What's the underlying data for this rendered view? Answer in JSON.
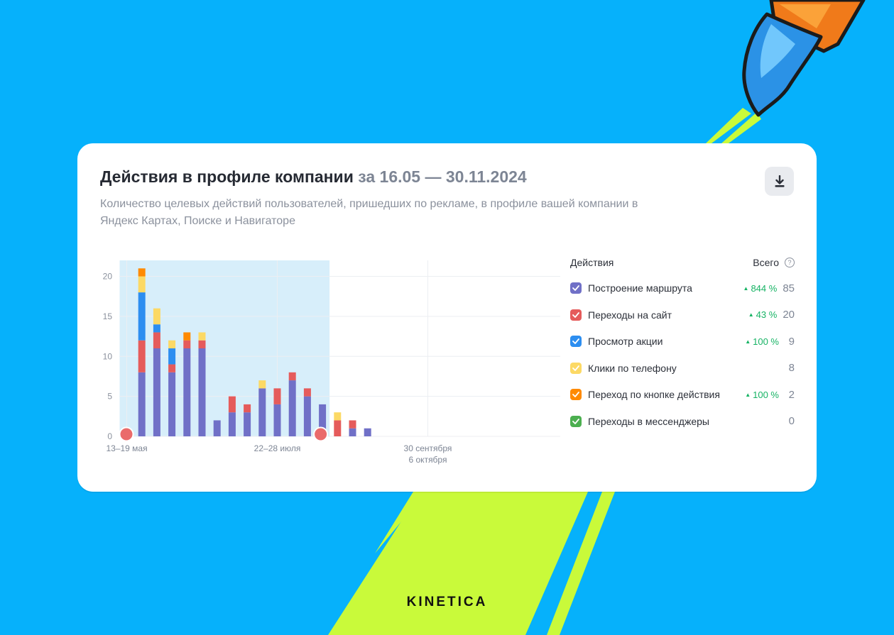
{
  "colors": {
    "background": "#06b1fb",
    "stripe": "#c9fa3a",
    "selection": "#d7eefa",
    "marker": "#ea6b6b"
  },
  "card": {
    "title": "Действия в профиле компании",
    "period": "за 16.05 — 30.11.2024",
    "subtitle": "Количество целевых действий пользователей, пришедших по рекламе, в профиле вашей компании в Яндекс Картах, Поиске и Навигаторе",
    "download_icon": "download-icon"
  },
  "legend": {
    "header": "Действия",
    "total_header": "Всего",
    "help_glyph": "?",
    "items": [
      {
        "label": "Построение маршрута",
        "change": "844 %",
        "total": "85",
        "color": "#7070c7"
      },
      {
        "label": "Переходы на сайт",
        "change": "43 %",
        "total": "20",
        "color": "#e55b5b"
      },
      {
        "label": "Просмотр акции",
        "change": "100 %",
        "total": "9",
        "color": "#2d8ef0"
      },
      {
        "label": "Клики по телефону",
        "change": "",
        "total": "8",
        "color": "#fcd965"
      },
      {
        "label": "Переход по кнопке действия",
        "change": "100 %",
        "total": "2",
        "color": "#ff8a00"
      },
      {
        "label": "Переходы в мессенджеры",
        "change": "",
        "total": "0",
        "color": "#4caf50"
      }
    ]
  },
  "chart_data": {
    "type": "bar",
    "stacked": true,
    "ylim": [
      0,
      22
    ],
    "yticks": [
      0,
      5,
      10,
      15,
      20
    ],
    "bar_count": 17,
    "x_tick_labels": [
      {
        "bar_index": 0,
        "label": "13–19 мая",
        "sublabel": ""
      },
      {
        "bar_index": 10,
        "label": "22–28 июля",
        "sublabel": ""
      },
      {
        "bar_index": 20,
        "label": "30 сентября",
        "sublabel": "6 октября"
      }
    ],
    "selection_bars": [
      0,
      13
    ],
    "series": [
      {
        "name": "Построение маршрута",
        "color": "#7070c7",
        "values": [
          0,
          8,
          11,
          8,
          11,
          11,
          2,
          3,
          3,
          6,
          4,
          7,
          5,
          4,
          0,
          1,
          1
        ]
      },
      {
        "name": "Переходы на сайт",
        "color": "#e55b5b",
        "values": [
          1,
          4,
          2,
          1,
          1,
          1,
          0,
          2,
          1,
          0,
          2,
          1,
          1,
          0,
          2,
          1,
          0
        ]
      },
      {
        "name": "Просмотр акции",
        "color": "#2d8ef0",
        "values": [
          0,
          6,
          1,
          2,
          0,
          0,
          0,
          0,
          0,
          0,
          0,
          0,
          0,
          0,
          0,
          0,
          0
        ]
      },
      {
        "name": "Клики по телефону",
        "color": "#fcd965",
        "values": [
          0,
          2,
          2,
          1,
          0,
          1,
          0,
          0,
          0,
          1,
          0,
          0,
          0,
          0,
          1,
          0,
          0
        ]
      },
      {
        "name": "Переход по кнопке действия",
        "color": "#ff8a00",
        "values": [
          0,
          1,
          0,
          0,
          1,
          0,
          0,
          0,
          0,
          0,
          0,
          0,
          0,
          0,
          0,
          0,
          0
        ]
      },
      {
        "name": "Переходы в мессенджеры",
        "color": "#4caf50",
        "values": [
          0,
          0,
          0,
          0,
          0,
          0,
          0,
          0,
          0,
          0,
          0,
          0,
          0,
          0,
          0,
          0,
          0
        ]
      }
    ]
  },
  "brand": {
    "name": "KINETICA"
  }
}
